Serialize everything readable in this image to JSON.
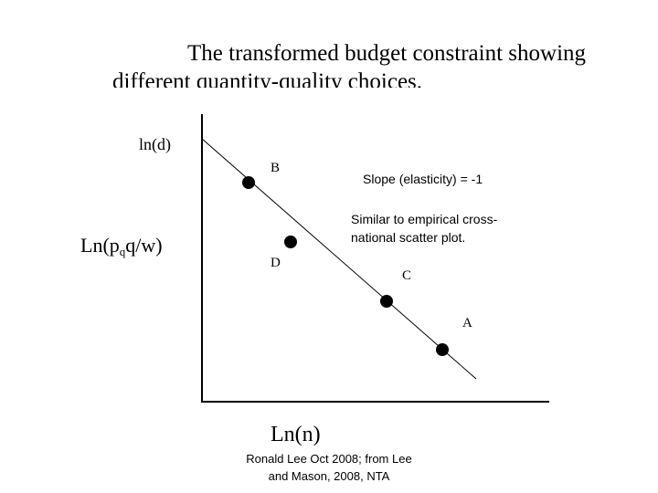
{
  "title": {
    "line1": "The transformed budget constraint showing",
    "line2": "different quantity-quality choices."
  },
  "y_axis": {
    "short_label": "ln(d)",
    "label": {
      "prefix": "Ln(p",
      "subscript": "q",
      "suffix": "q/w)"
    }
  },
  "x_axis": {
    "label": "Ln(n)"
  },
  "points": [
    "B",
    "D",
    "C",
    "A"
  ],
  "annotations": {
    "slope": "Slope (elasticity) = -1",
    "similar_line1": "Similar to empirical cross-",
    "similar_line2": "national scatter plot."
  },
  "footer": {
    "line1": "Ronald Lee Oct 2008; from Lee",
    "line2": "and Mason, 2008, NTA"
  }
}
